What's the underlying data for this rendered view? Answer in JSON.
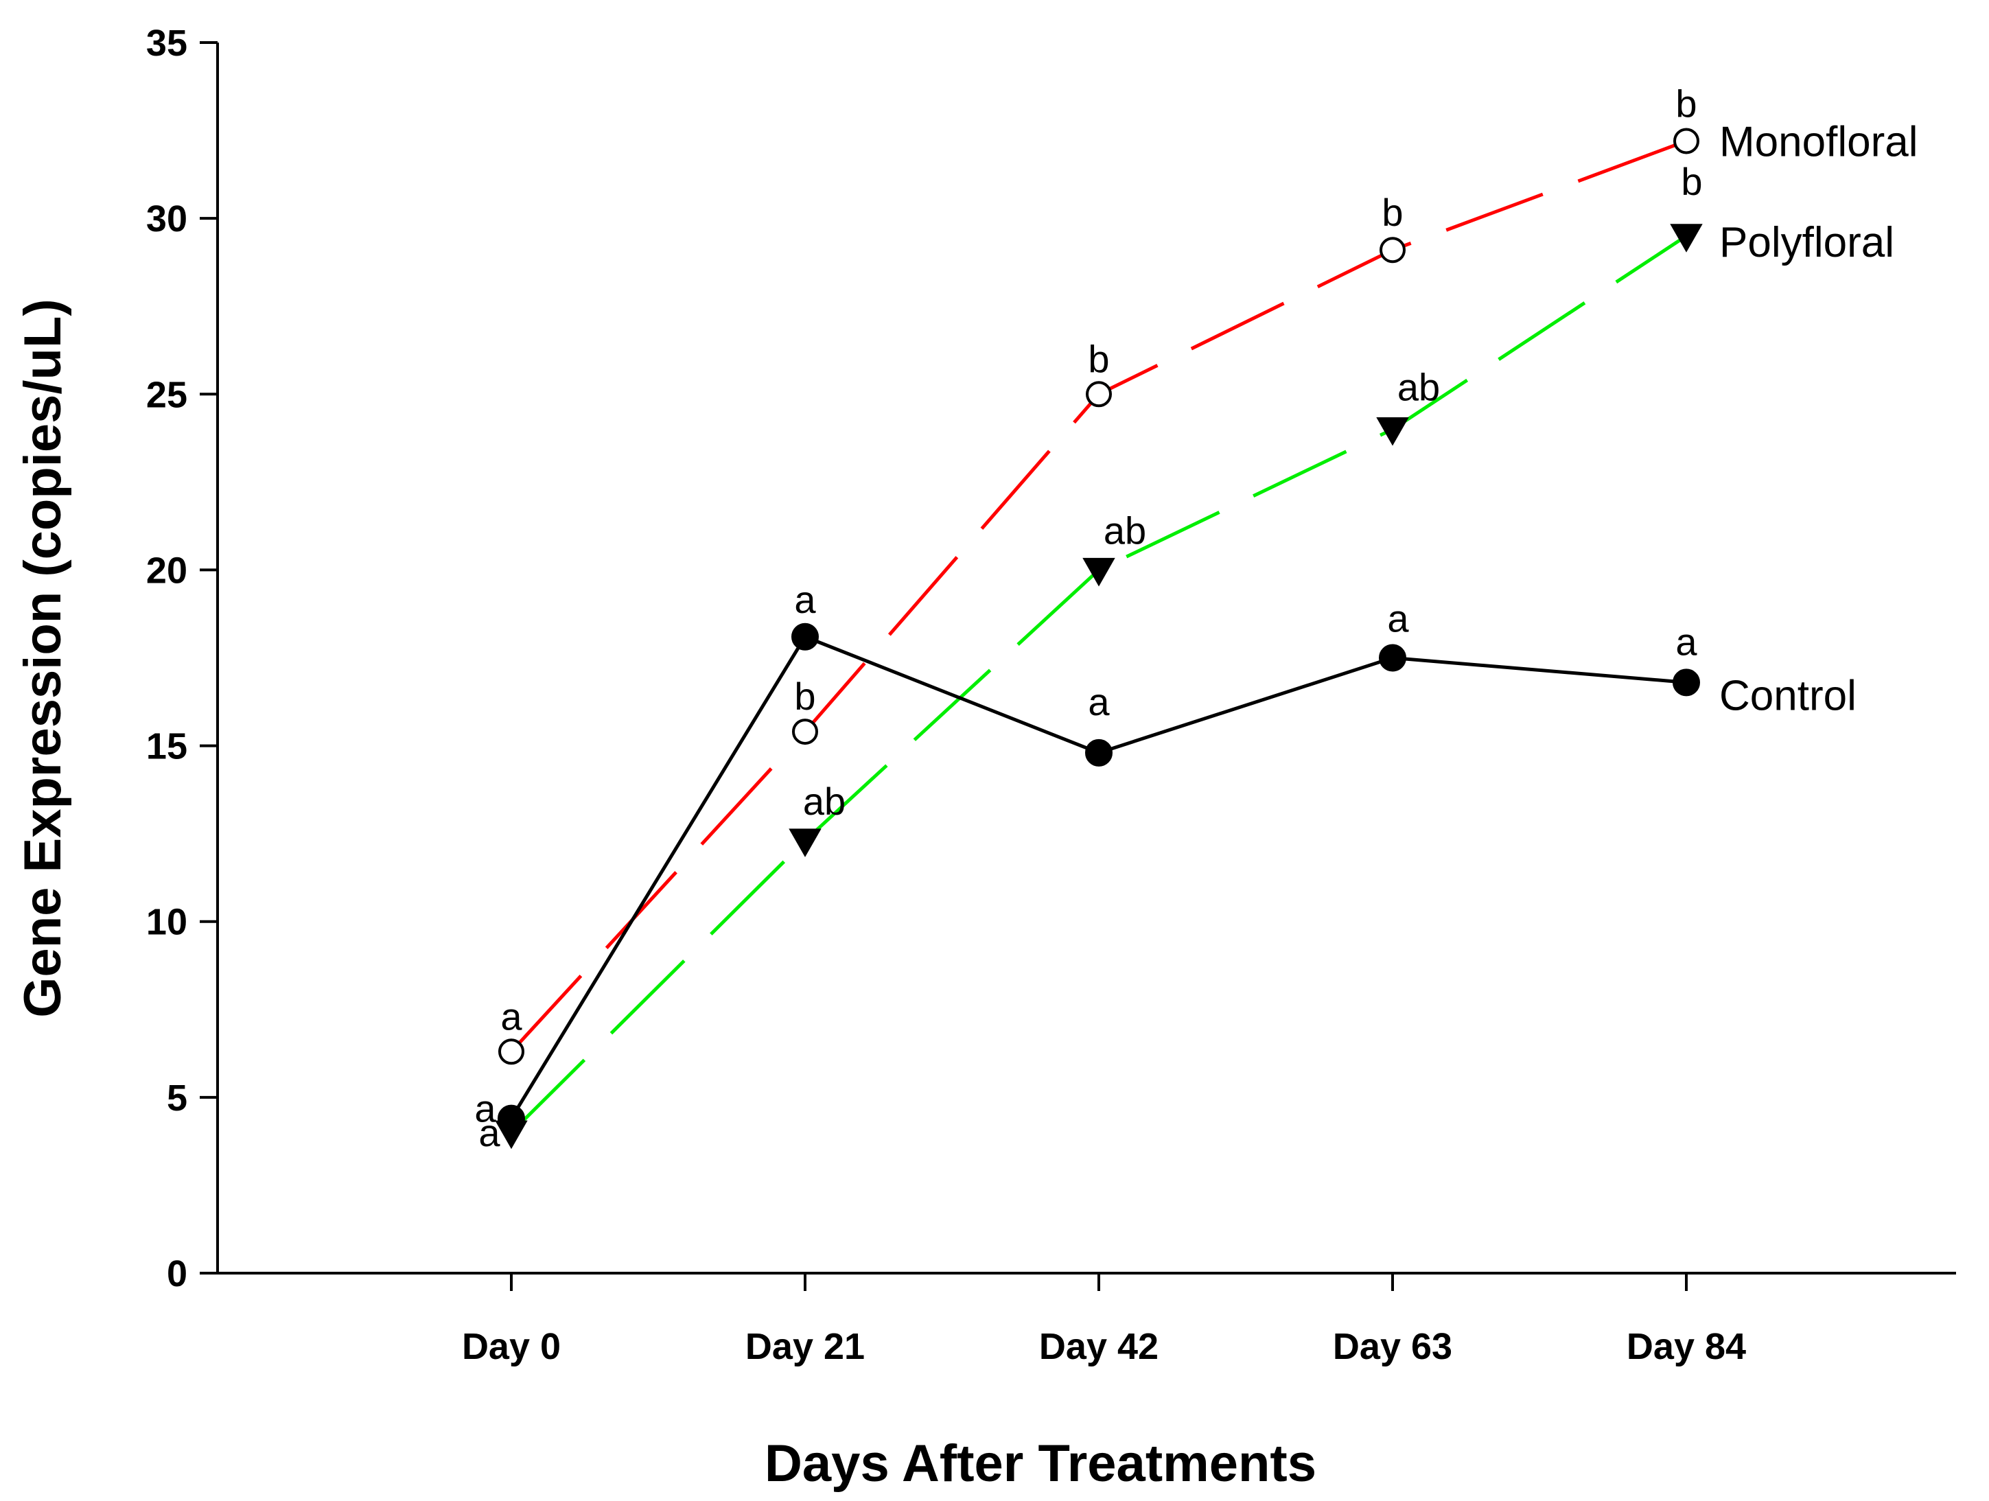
{
  "chart_data": {
    "type": "line",
    "categories": [
      "Day 0",
      "Day 21",
      "Day 42",
      "Day 63",
      "Day 84"
    ],
    "title": "",
    "xlabel": "Days After Treatments",
    "ylabel": "Gene Expression (copies/uL)",
    "ylim": [
      0,
      35
    ],
    "yticks": [
      "0",
      "5",
      "10",
      "15",
      "20",
      "25",
      "30",
      "35"
    ],
    "grid": false,
    "legend": "direct labels at right end of each line",
    "series": [
      {
        "name": "Monofloral",
        "color": "#ff0000",
        "line_style": "dashed",
        "marker": "open-circle",
        "values": [
          6.3,
          15.4,
          25.0,
          29.1,
          32.2
        ],
        "letters": [
          "a",
          "b",
          "b",
          "b",
          "b"
        ]
      },
      {
        "name": "Polyfloral",
        "color": "#00ee00",
        "line_style": "dashed",
        "marker": "filled-triangle-down",
        "values": [
          4.0,
          12.3,
          20.0,
          24.0,
          29.5
        ],
        "letters": [
          "a",
          "ab",
          "ab",
          "ab",
          "b"
        ]
      },
      {
        "name": "Control",
        "color": "#000000",
        "line_style": "solid",
        "marker": "filled-circle",
        "values": [
          4.4,
          18.1,
          14.8,
          17.5,
          16.8
        ],
        "letters": [
          "a",
          "a",
          "a",
          "a",
          "a"
        ]
      }
    ]
  }
}
